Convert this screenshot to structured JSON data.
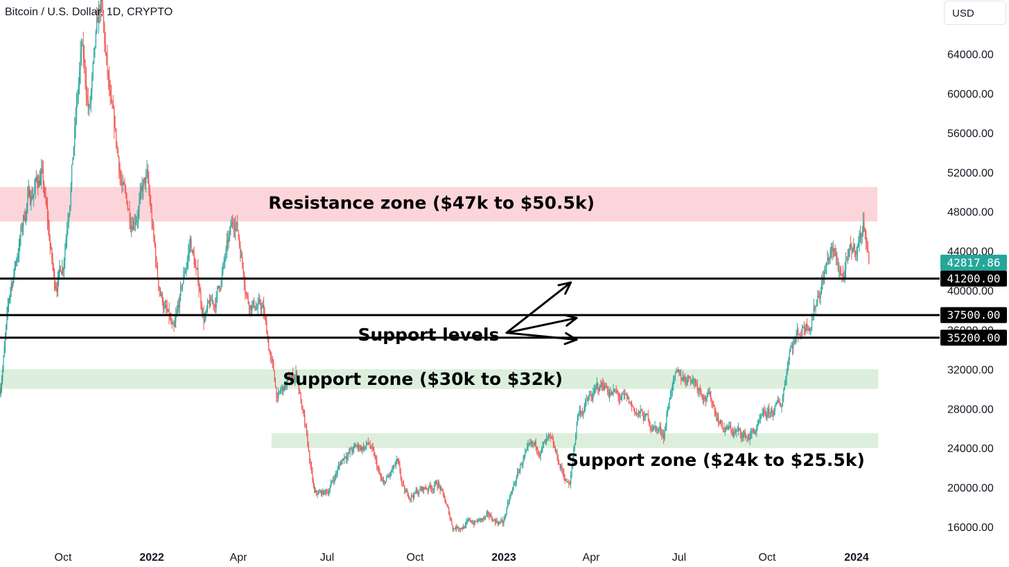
{
  "header": {
    "symbol_title": "Bitcoin / U.S. Dollar, 1D, CRYPTO",
    "currency_label": "USD"
  },
  "colors": {
    "up": "#26a69a",
    "down": "#ef5350",
    "resistance": "#fcd5da",
    "support": "#dcefdc",
    "last_price_bg": "#26a69a",
    "level_bg": "#000000"
  },
  "chart_data": {
    "type": "candlestick",
    "title": "Bitcoin / U.S. Dollar, 1D, CRYPTO",
    "y_axis": {
      "ticks": [
        "64000.00",
        "60000.00",
        "56000.00",
        "52000.00",
        "48000.00",
        "44000.00",
        "40000.00",
        "36000.00",
        "32000.00",
        "28000.00",
        "24000.00",
        "20000.00",
        "16000.00"
      ],
      "range": [
        14000,
        70000
      ]
    },
    "x_axis": {
      "ticks": [
        {
          "label": "Oct",
          "date": "2021-10-01",
          "year": false
        },
        {
          "label": "2022",
          "date": "2022-01-01",
          "year": true
        },
        {
          "label": "Apr",
          "date": "2022-04-01",
          "year": false
        },
        {
          "label": "Jul",
          "date": "2022-07-01",
          "year": false
        },
        {
          "label": "Oct",
          "date": "2022-10-01",
          "year": false
        },
        {
          "label": "2023",
          "date": "2023-01-01",
          "year": true
        },
        {
          "label": "Apr",
          "date": "2023-04-01",
          "year": false
        },
        {
          "label": "Jul",
          "date": "2023-07-01",
          "year": false
        },
        {
          "label": "Oct",
          "date": "2023-10-01",
          "year": false
        },
        {
          "label": "2024",
          "date": "2024-01-01",
          "year": true
        }
      ]
    },
    "price_path": [
      [
        "2021-07-20",
        30000
      ],
      [
        "2021-08-01",
        40000
      ],
      [
        "2021-08-20",
        49000
      ],
      [
        "2021-09-06",
        52000
      ],
      [
        "2021-09-21",
        40500
      ],
      [
        "2021-10-01",
        43000
      ],
      [
        "2021-10-20",
        64000
      ],
      [
        "2021-10-28",
        58000
      ],
      [
        "2021-11-09",
        68500
      ],
      [
        "2021-11-20",
        57000
      ],
      [
        "2021-12-04",
        49000
      ],
      [
        "2021-12-10",
        47500
      ],
      [
        "2021-12-27",
        51000
      ],
      [
        "2022-01-07",
        41000
      ],
      [
        "2022-01-24",
        35000
      ],
      [
        "2022-02-10",
        45000
      ],
      [
        "2022-02-24",
        37500
      ],
      [
        "2022-03-07",
        38500
      ],
      [
        "2022-03-29",
        47500
      ],
      [
        "2022-04-11",
        39500
      ],
      [
        "2022-04-26",
        38000
      ],
      [
        "2022-05-11",
        29000
      ],
      [
        "2022-05-31",
        31700
      ],
      [
        "2022-06-13",
        22500
      ],
      [
        "2022-06-18",
        19000
      ],
      [
        "2022-07-01",
        19500
      ],
      [
        "2022-07-20",
        23500
      ],
      [
        "2022-08-14",
        24400
      ],
      [
        "2022-08-28",
        20000
      ],
      [
        "2022-09-12",
        22200
      ],
      [
        "2022-09-20",
        19000
      ],
      [
        "2022-10-25",
        20500
      ],
      [
        "2022-11-09",
        16000
      ],
      [
        "2022-12-16",
        16800
      ],
      [
        "2022-12-31",
        16500
      ],
      [
        "2023-01-21",
        23000
      ],
      [
        "2023-02-16",
        24500
      ],
      [
        "2023-03-10",
        20000
      ],
      [
        "2023-03-18",
        27500
      ],
      [
        "2023-04-14",
        30500
      ],
      [
        "2023-04-30",
        29000
      ],
      [
        "2023-06-15",
        25500
      ],
      [
        "2023-06-23",
        30500
      ],
      [
        "2023-07-13",
        31500
      ],
      [
        "2023-08-01",
        29300
      ],
      [
        "2023-08-17",
        26000
      ],
      [
        "2023-09-11",
        25100
      ],
      [
        "2023-10-16",
        28500
      ],
      [
        "2023-10-24",
        34500
      ],
      [
        "2023-11-15",
        37500
      ],
      [
        "2023-12-05",
        44000
      ],
      [
        "2023-12-18",
        41500
      ],
      [
        "2024-01-01",
        44500
      ],
      [
        "2024-01-10",
        47000
      ],
      [
        "2024-01-14",
        42817
      ]
    ],
    "last_price": 42817.86,
    "last_price_label": "42817.86",
    "horizontal_levels": [
      {
        "value": 41200,
        "label": "41200.00"
      },
      {
        "value": 37500,
        "label": "37500.00"
      },
      {
        "value": 35200,
        "label": "35200.00"
      }
    ],
    "zones": [
      {
        "name": "resistance",
        "from": 47000,
        "to": 50500,
        "start": "2021-07-20",
        "end": "2024-01-23",
        "label": "Resistance zone ($47k to $50.5k)"
      },
      {
        "name": "support-30-32",
        "from": 30000,
        "to": 32000,
        "start": "2021-07-20",
        "end": "2024-01-24",
        "label": "Support zone ($30k to $32k)"
      },
      {
        "name": "support-24-25",
        "from": 24000,
        "to": 25500,
        "start": "2022-05-05",
        "end": "2024-01-24",
        "label": "Support zone ($24k to $25.5k)"
      }
    ],
    "annotations": {
      "support_levels_label": "Support levels",
      "arrow_targets": [
        {
          "date": "2023-03-11",
          "value": 40800
        },
        {
          "date": "2023-03-17",
          "value": 37200
        },
        {
          "date": "2023-03-17",
          "value": 35000
        }
      ]
    }
  }
}
